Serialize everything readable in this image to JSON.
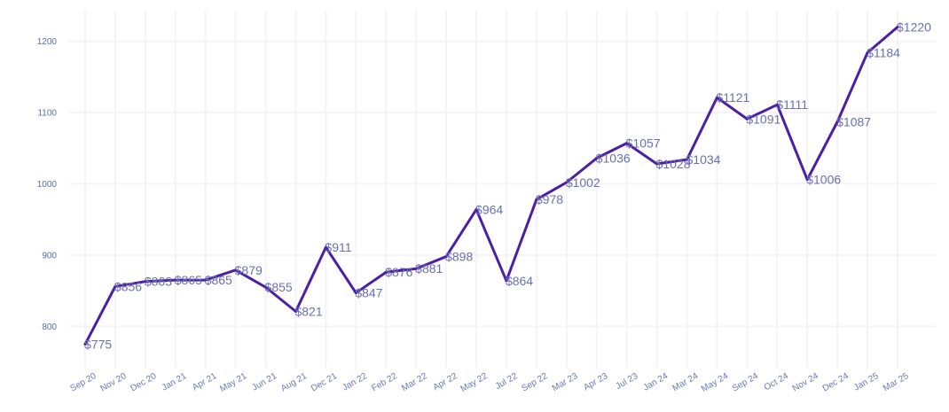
{
  "chart_data": {
    "type": "line",
    "categories": [
      "Sep 20",
      "Nov 20",
      "Dec 20",
      "Jan 21",
      "Apr 21",
      "May 21",
      "Jun 21",
      "Aug 21",
      "Dec 21",
      "Jan 22",
      "Feb 22",
      "Mar 22",
      "Apr 22",
      "May 22",
      "Jul 22",
      "Sep 22",
      "Mar 23",
      "Apr 23",
      "Jul 23",
      "Jan 24",
      "Mar 24",
      "May 24",
      "Sep 24",
      "Oct 24",
      "Nov 24",
      "Dec 24",
      "Jan 25",
      "Mar 25"
    ],
    "values": [
      775,
      856,
      863,
      865,
      865,
      879,
      855,
      821,
      911,
      847,
      876,
      881,
      898,
      964,
      864,
      978,
      1002,
      1036,
      1057,
      1028,
      1034,
      1121,
      1091,
      1111,
      1006,
      1087,
      1184,
      1220
    ],
    "labels": [
      "$775",
      "$856",
      "$863",
      "$865",
      "$865",
      "$879",
      "$855",
      "$821",
      "$911",
      "$847",
      "$876",
      "$881",
      "$898",
      "$964",
      "$864",
      "$978",
      "$1002",
      "$1036",
      "$1057",
      "$1028",
      "$1034",
      "$1121",
      "$1091",
      "$1111",
      "$1006",
      "$1087",
      "$1184",
      "$1220"
    ],
    "yticks": [
      800,
      900,
      1000,
      1100,
      1200
    ],
    "ylim": [
      752,
      1243
    ],
    "title": "",
    "xlabel": "",
    "ylabel": "",
    "grid": true,
    "colors": {
      "line": "#4a1fa6",
      "label": "#6a6fb0",
      "tick": "#5c6aa8",
      "grid": "#f3f3f8"
    }
  }
}
